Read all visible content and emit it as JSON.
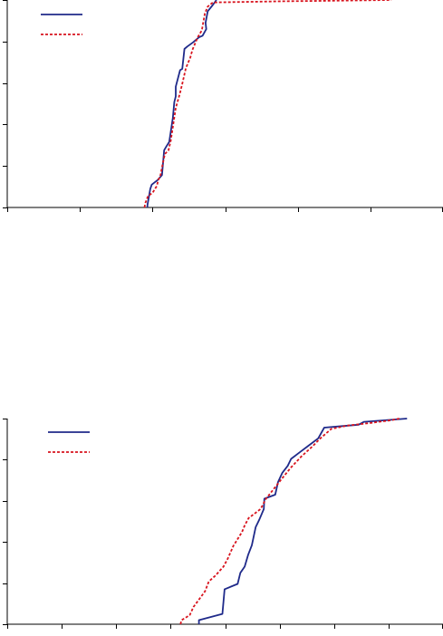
{
  "chart_data": [
    {
      "type": "line",
      "title": "",
      "xlabel": "",
      "ylabel": "",
      "xlim": [
        0,
        6
      ],
      "ylim": [
        0,
        5
      ],
      "xticks": [
        0,
        1,
        2,
        3,
        4,
        5,
        6
      ],
      "yticks": [
        0,
        1,
        2,
        3,
        4,
        5
      ],
      "grid": false,
      "legend": "top-left",
      "colors": {
        "series1": "#1f2a8a",
        "series2": "#d8141e",
        "axis": "#000000"
      },
      "series": [
        {
          "style": "solid",
          "points": [
            [
              1.93,
              0.0
            ],
            [
              1.93,
              0.05
            ],
            [
              1.97,
              0.45
            ],
            [
              1.99,
              0.55
            ],
            [
              2.07,
              0.66
            ],
            [
              2.13,
              0.78
            ],
            [
              2.16,
              1.38
            ],
            [
              2.19,
              1.47
            ],
            [
              2.23,
              1.58
            ],
            [
              2.28,
              2.16
            ],
            [
              2.3,
              2.54
            ],
            [
              2.32,
              2.68
            ],
            [
              2.32,
              2.91
            ],
            [
              2.38,
              3.31
            ],
            [
              2.41,
              3.34
            ],
            [
              2.44,
              3.82
            ],
            [
              2.48,
              3.88
            ],
            [
              2.56,
              3.98
            ],
            [
              2.64,
              4.1
            ],
            [
              2.69,
              4.14
            ],
            [
              2.74,
              4.3
            ],
            [
              2.73,
              4.45
            ],
            [
              2.76,
              4.73
            ],
            [
              2.83,
              4.88
            ],
            [
              2.88,
              5.0
            ]
          ]
        },
        {
          "style": "dotted",
          "points": [
            [
              1.89,
              0.0
            ],
            [
              1.9,
              0.1
            ],
            [
              1.94,
              0.28
            ],
            [
              2.0,
              0.35
            ],
            [
              2.06,
              0.52
            ],
            [
              2.08,
              0.66
            ],
            [
              2.11,
              0.78
            ],
            [
              2.14,
              1.05
            ],
            [
              2.17,
              1.29
            ],
            [
              2.22,
              1.38
            ],
            [
              2.25,
              1.6
            ],
            [
              2.28,
              1.94
            ],
            [
              2.32,
              2.4
            ],
            [
              2.37,
              2.7
            ],
            [
              2.41,
              2.98
            ],
            [
              2.46,
              3.36
            ],
            [
              2.52,
              3.61
            ],
            [
              2.55,
              3.8
            ],
            [
              2.62,
              4.09
            ],
            [
              2.68,
              4.27
            ],
            [
              2.72,
              4.67
            ],
            [
              2.76,
              4.84
            ],
            [
              2.83,
              4.94
            ],
            [
              3.8,
              4.97
            ],
            [
              4.4,
              4.98
            ],
            [
              5.29,
              5.0
            ]
          ]
        }
      ]
    },
    {
      "type": "line",
      "title": "",
      "xlabel": "",
      "ylabel": "",
      "xlim": [
        0,
        8
      ],
      "ylim": [
        0,
        5
      ],
      "xticks": [
        0,
        1,
        2,
        3,
        4,
        5,
        6,
        7,
        8
      ],
      "yticks": [
        0,
        1,
        2,
        3,
        4,
        5
      ],
      "grid": false,
      "legend": "top-left",
      "colors": {
        "series1": "#1f2a8a",
        "series2": "#d8141e",
        "axis": "#000000"
      },
      "series": [
        {
          "style": "solid",
          "points": [
            [
              3.52,
              0.0
            ],
            [
              3.52,
              0.1
            ],
            [
              3.95,
              0.25
            ],
            [
              3.97,
              0.55
            ],
            [
              3.99,
              0.85
            ],
            [
              4.23,
              0.98
            ],
            [
              4.28,
              1.25
            ],
            [
              4.36,
              1.4
            ],
            [
              4.42,
              1.68
            ],
            [
              4.49,
              1.92
            ],
            [
              4.56,
              2.36
            ],
            [
              4.63,
              2.55
            ],
            [
              4.71,
              2.8
            ],
            [
              4.72,
              3.05
            ],
            [
              4.92,
              3.15
            ],
            [
              4.97,
              3.45
            ],
            [
              5.05,
              3.68
            ],
            [
              5.15,
              3.85
            ],
            [
              5.21,
              4.02
            ],
            [
              5.37,
              4.18
            ],
            [
              5.54,
              4.35
            ],
            [
              5.71,
              4.52
            ],
            [
              5.82,
              4.78
            ],
            [
              6.45,
              4.85
            ],
            [
              6.55,
              4.92
            ],
            [
              7.34,
              5.0
            ]
          ]
        },
        {
          "style": "dotted",
          "points": [
            [
              3.18,
              0.0
            ],
            [
              3.2,
              0.1
            ],
            [
              3.35,
              0.22
            ],
            [
              3.42,
              0.42
            ],
            [
              3.52,
              0.6
            ],
            [
              3.63,
              0.8
            ],
            [
              3.7,
              1.04
            ],
            [
              3.82,
              1.18
            ],
            [
              3.97,
              1.4
            ],
            [
              4.05,
              1.6
            ],
            [
              4.15,
              1.9
            ],
            [
              4.31,
              2.24
            ],
            [
              4.36,
              2.4
            ],
            [
              4.43,
              2.58
            ],
            [
              4.65,
              2.8
            ],
            [
              4.75,
              3.05
            ],
            [
              4.9,
              3.3
            ],
            [
              5.05,
              3.55
            ],
            [
              5.2,
              3.8
            ],
            [
              5.4,
              4.08
            ],
            [
              5.6,
              4.32
            ],
            [
              5.75,
              4.52
            ],
            [
              5.95,
              4.75
            ],
            [
              6.25,
              4.83
            ],
            [
              6.65,
              4.89
            ],
            [
              7.05,
              4.96
            ],
            [
              7.2,
              5.0
            ]
          ]
        }
      ]
    }
  ]
}
